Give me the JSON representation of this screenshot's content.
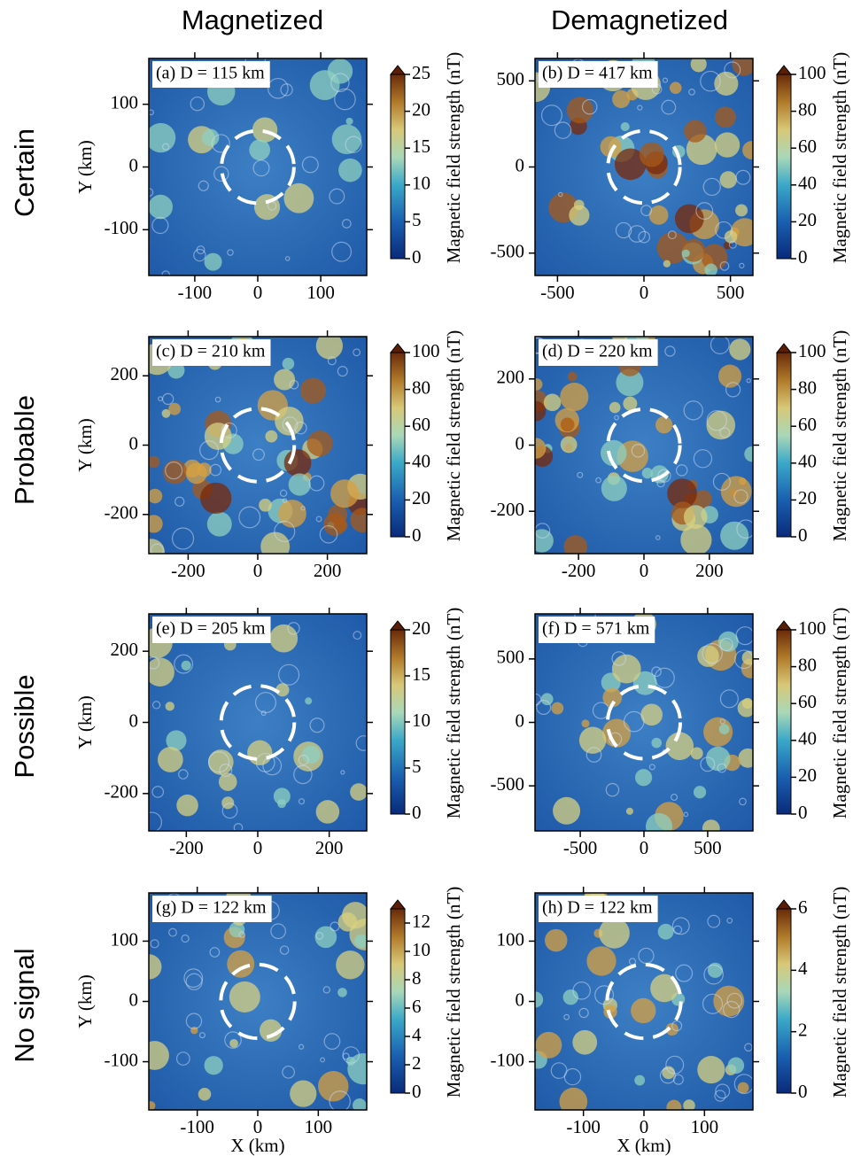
{
  "column_titles": [
    "Magnetized",
    "Demagnetized"
  ],
  "row_labels": [
    "Certain",
    "Probable",
    "Possible",
    "No signal"
  ],
  "chart_data": [
    {
      "type": "heatmap",
      "title": "(a) D = 115 km",
      "crater_diameter": 115,
      "ylabel": "Y (km)",
      "xlim": [
        -173,
        173
      ],
      "ylim": [
        -173,
        173
      ],
      "xticks": [
        -100,
        0,
        100
      ],
      "yticks": [
        -100,
        0,
        100
      ],
      "colorbar": {
        "label": "Magnetic field strength (nT)",
        "lim": [
          0,
          25
        ],
        "ticks": [
          0,
          5,
          10,
          15,
          20,
          25
        ]
      }
    },
    {
      "type": "heatmap",
      "title": "(b) D = 417 km",
      "crater_diameter": 417,
      "xlim": [
        -630,
        630
      ],
      "ylim": [
        -630,
        630
      ],
      "xticks": [
        -500,
        0,
        500
      ],
      "yticks": [
        -500,
        0,
        500
      ],
      "colorbar": {
        "label": "Magnetic field strength (nT)",
        "lim": [
          0,
          100
        ],
        "ticks": [
          0,
          20,
          40,
          60,
          80,
          100
        ]
      }
    },
    {
      "type": "heatmap",
      "title": "(c) D = 210 km",
      "crater_diameter": 210,
      "ylabel": "Y (km)",
      "xlim": [
        -313,
        313
      ],
      "ylim": [
        -313,
        313
      ],
      "xticks": [
        -200,
        0,
        200
      ],
      "yticks": [
        -200,
        0,
        200
      ],
      "colorbar": {
        "label": "Magnetic field strength (nT)",
        "lim": [
          0,
          100
        ],
        "ticks": [
          0,
          20,
          40,
          60,
          80,
          100
        ]
      }
    },
    {
      "type": "heatmap",
      "title": "(d) D = 220 km",
      "crater_diameter": 220,
      "xlim": [
        -333,
        333
      ],
      "ylim": [
        -328,
        328
      ],
      "xticks": [
        -200,
        0,
        200
      ],
      "yticks": [
        -200,
        0,
        200
      ],
      "colorbar": {
        "label": "Magnetic field strength (nT)",
        "lim": [
          0,
          100
        ],
        "ticks": [
          0,
          20,
          40,
          60,
          80,
          100
        ]
      }
    },
    {
      "type": "heatmap",
      "title": "(e) D = 205 km",
      "crater_diameter": 205,
      "ylabel": "Y (km)",
      "xlim": [
        -305,
        305
      ],
      "ylim": [
        -305,
        305
      ],
      "xticks": [
        -200,
        0,
        200
      ],
      "yticks": [
        -200,
        0,
        200
      ],
      "colorbar": {
        "label": "Magnetic field strength (nT)",
        "lim": [
          0,
          20
        ],
        "ticks": [
          0,
          5,
          10,
          15,
          20
        ]
      }
    },
    {
      "type": "heatmap",
      "title": "(f) D = 571 km",
      "crater_diameter": 571,
      "xlim": [
        -855,
        855
      ],
      "ylim": [
        -855,
        855
      ],
      "xticks": [
        -500,
        0,
        500
      ],
      "yticks": [
        -500,
        0,
        500
      ],
      "colorbar": {
        "label": "Magnetic field strength (nT)",
        "lim": [
          0,
          100
        ],
        "ticks": [
          0,
          20,
          40,
          60,
          80,
          100
        ]
      }
    },
    {
      "type": "heatmap",
      "title": "(g) D = 122 km",
      "crater_diameter": 122,
      "ylabel": "Y (km)",
      "xlabel": "X (km)",
      "xlim": [
        -180,
        180
      ],
      "ylim": [
        -180,
        180
      ],
      "xticks": [
        -100,
        0,
        100
      ],
      "yticks": [
        -100,
        0,
        100
      ],
      "colorbar": {
        "label": "Magnetic field strength (nT)",
        "lim": [
          0,
          13
        ],
        "ticks": [
          0,
          2,
          4,
          6,
          8,
          10,
          12
        ]
      }
    },
    {
      "type": "heatmap",
      "title": "(h) D = 122 km",
      "crater_diameter": 122,
      "xlabel": "X (km)",
      "xlim": [
        -180,
        180
      ],
      "ylim": [
        -180,
        180
      ],
      "xticks": [
        -100,
        0,
        100
      ],
      "yticks": [
        -100,
        0,
        100
      ],
      "colorbar": {
        "label": "Magnetic field strength (nT)",
        "lim": [
          0,
          6
        ],
        "ticks": [
          0,
          2,
          4,
          6
        ]
      }
    }
  ]
}
